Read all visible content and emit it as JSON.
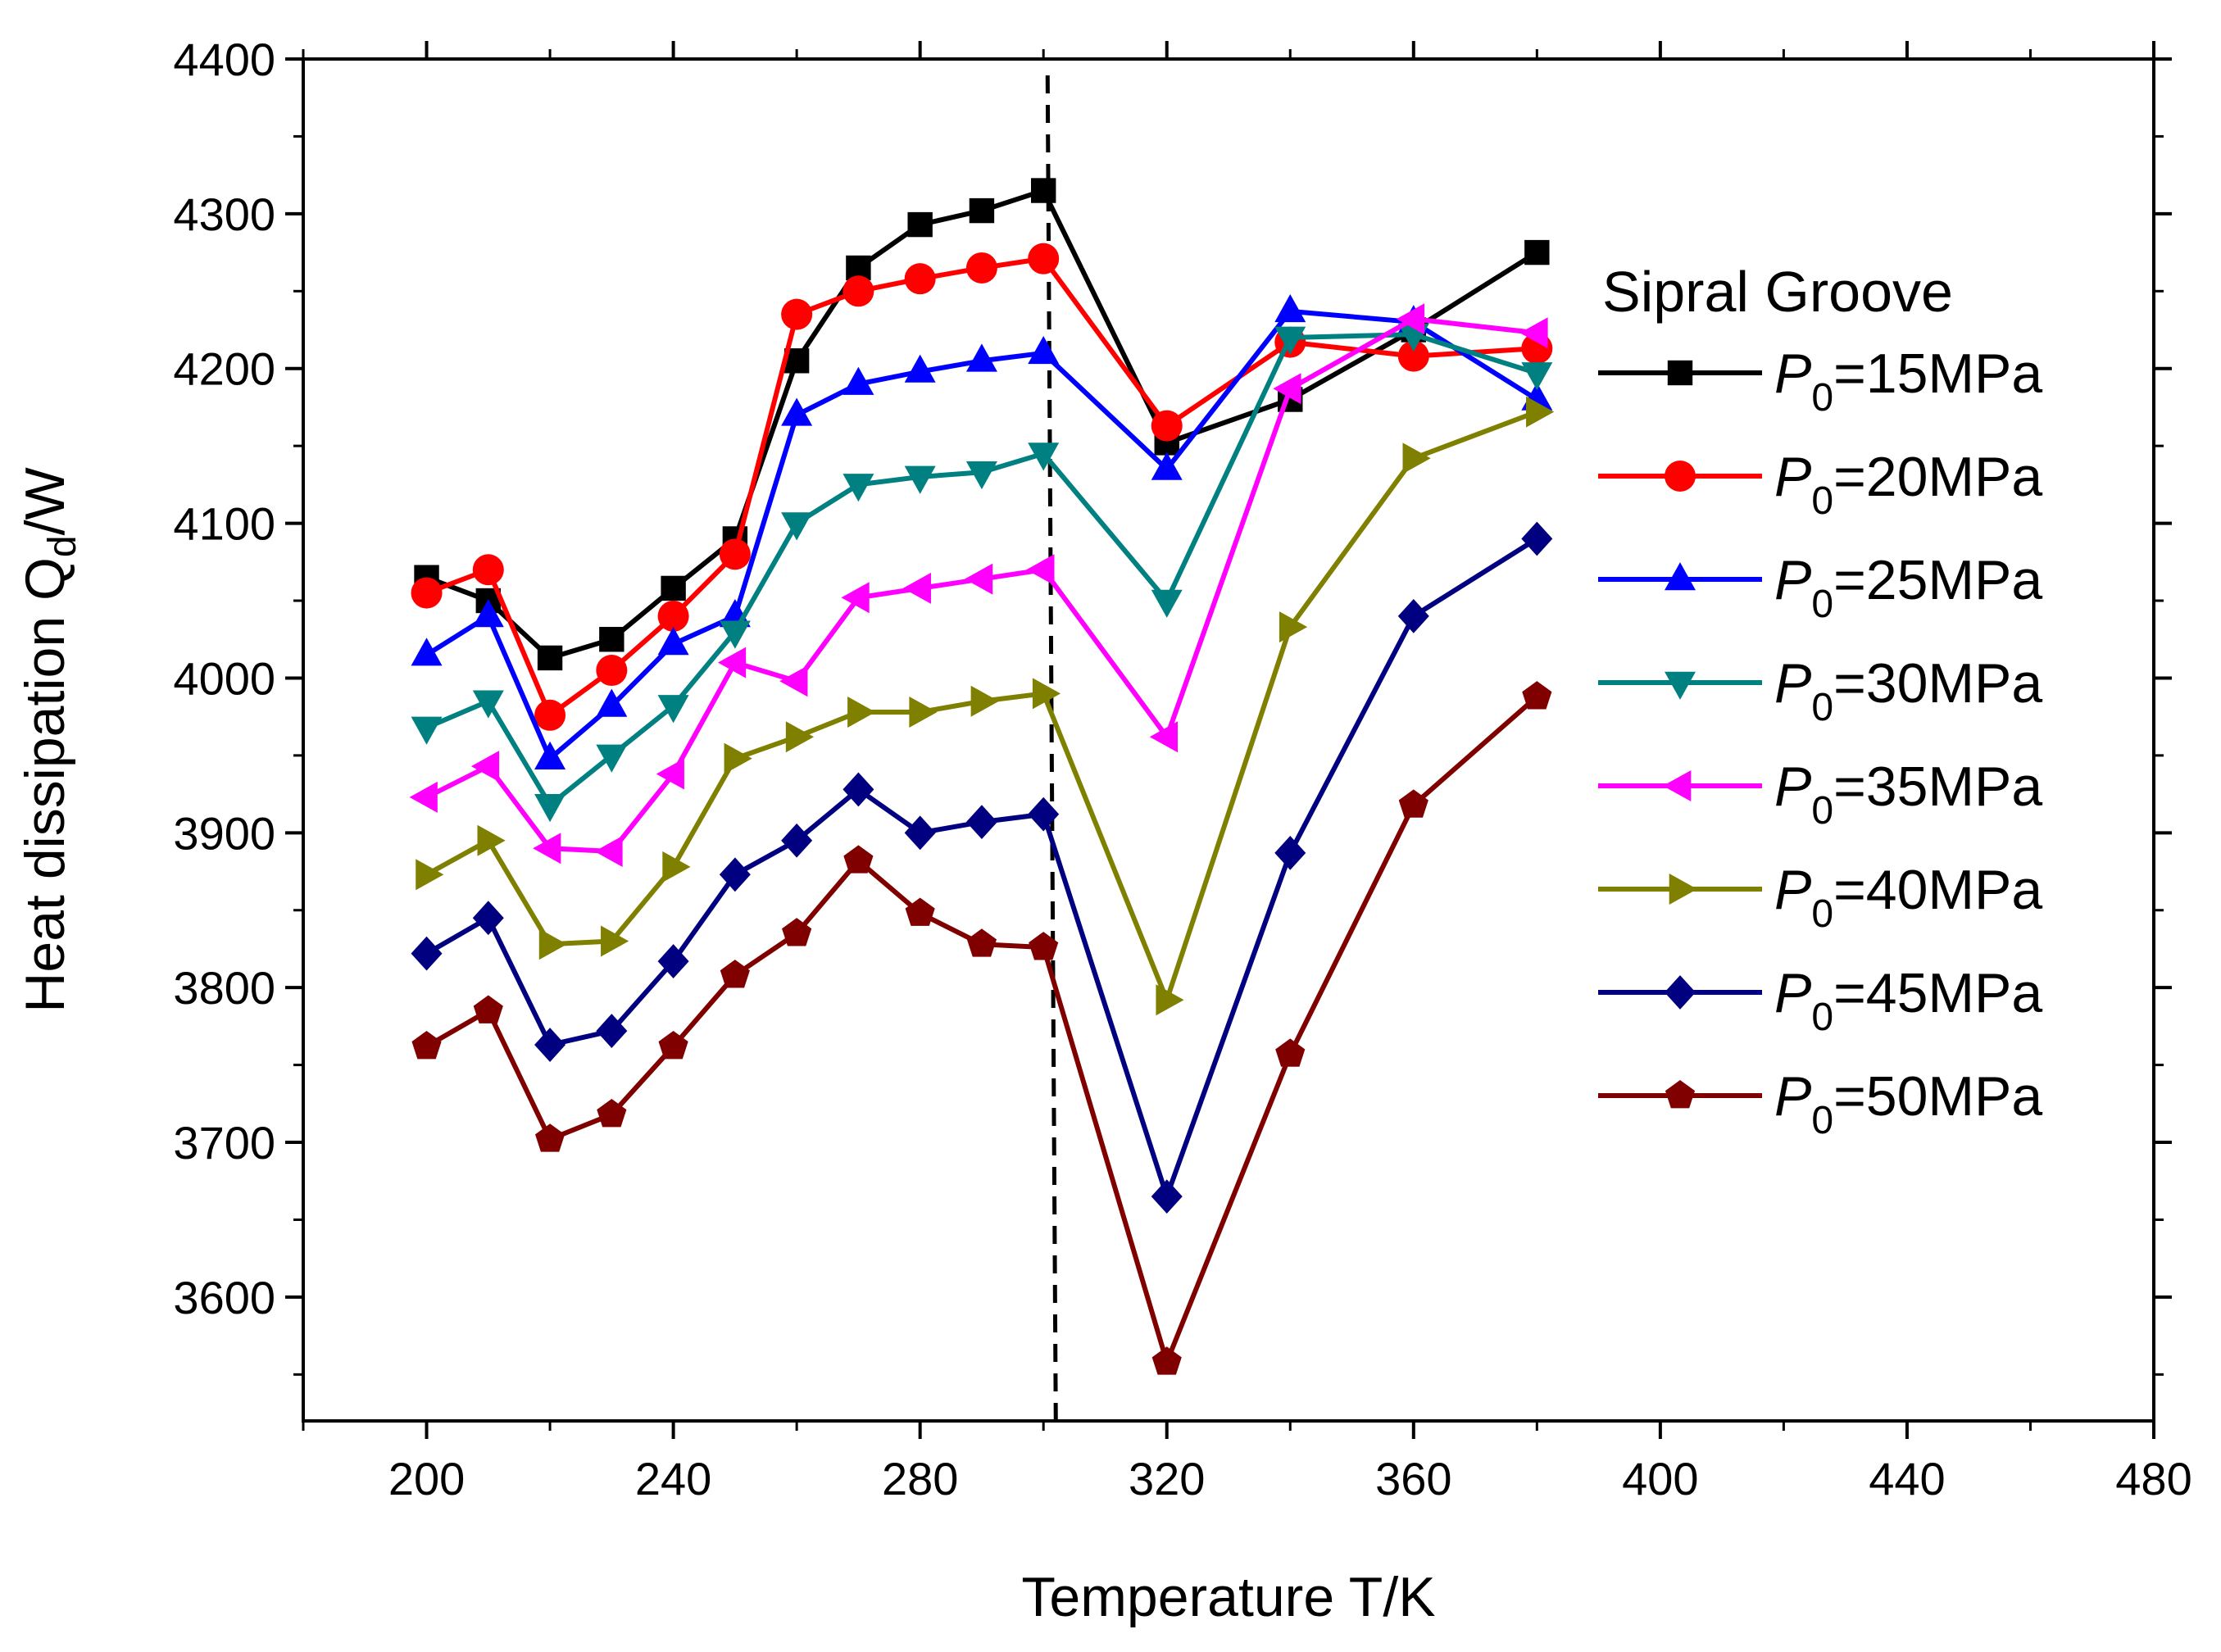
{
  "chart_data": {
    "type": "line",
    "title": "",
    "xlabel": "Temperature T/K",
    "ylabel_main": "Heat dissipation Q",
    "ylabel_sub": "d",
    "ylabel_unit": "/W",
    "xlim": [
      180,
      480
    ],
    "ylim": [
      3520,
      4400
    ],
    "xticks": [
      200,
      240,
      280,
      320,
      360,
      400,
      440,
      480
    ],
    "yticks": [
      3600,
      3700,
      3800,
      3900,
      4000,
      4100,
      4200,
      4300,
      4400
    ],
    "x": [
      200,
      210,
      220,
      230,
      240,
      250,
      260,
      270,
      280,
      290,
      300,
      320,
      340,
      360,
      380
    ],
    "reference_line_x": 302,
    "legend_title": "Sipral Groove",
    "legend_position": "right",
    "series": [
      {
        "name": "15MPa",
        "label_prefix": "P",
        "label_sub": "0",
        "label_suffix": "=15MPa",
        "color": "#000000",
        "marker": "square",
        "values": [
          4065,
          4050,
          4013,
          4025,
          4058,
          4090,
          4205,
          4265,
          4293,
          4302,
          4315,
          4152,
          4180,
          4225,
          4275
        ]
      },
      {
        "name": "20MPa",
        "label_prefix": "P",
        "label_sub": "0",
        "label_suffix": "=20MPa",
        "color": "#ff0000",
        "marker": "circle",
        "values": [
          4055,
          4070,
          3976,
          4005,
          4040,
          4080,
          4235,
          4250,
          4258,
          4265,
          4271,
          4163,
          4217,
          4208,
          4213
        ]
      },
      {
        "name": "25MPa",
        "label_prefix": "P",
        "label_sub": "0",
        "label_suffix": "=25MPa",
        "color": "#0000ff",
        "marker": "triangle-up",
        "values": [
          4015,
          4040,
          3948,
          3982,
          4022,
          4040,
          4170,
          4190,
          4198,
          4205,
          4210,
          4135,
          4237,
          4230,
          4180
        ]
      },
      {
        "name": "30MPa",
        "label_prefix": "P",
        "label_sub": "0",
        "label_suffix": "=30MPa",
        "color": "#008080",
        "marker": "triangle-down",
        "values": [
          3968,
          3985,
          3918,
          3950,
          3982,
          4030,
          4100,
          4125,
          4130,
          4133,
          4145,
          4050,
          4220,
          4222,
          4197
        ]
      },
      {
        "name": "35MPa",
        "label_prefix": "P",
        "label_sub": "0",
        "label_suffix": "=35MPa",
        "color": "#ff00ff",
        "marker": "triangle-left",
        "values": [
          3923,
          3943,
          3890,
          3888,
          3938,
          4010,
          3998,
          4052,
          4058,
          4064,
          4070,
          3962,
          4187,
          4232,
          4223
        ]
      },
      {
        "name": "40MPa",
        "label_prefix": "P",
        "label_sub": "0",
        "label_suffix": "=40MPa",
        "color": "#808000",
        "marker": "triangle-right",
        "values": [
          3873,
          3895,
          3828,
          3830,
          3878,
          3948,
          3962,
          3978,
          3978,
          3985,
          3990,
          3792,
          4033,
          4142,
          4172
        ]
      },
      {
        "name": "45MPa",
        "label_prefix": "P",
        "label_sub": "0",
        "label_suffix": "=45MPa",
        "color": "#000080",
        "marker": "diamond",
        "values": [
          3822,
          3845,
          3763,
          3772,
          3817,
          3873,
          3895,
          3928,
          3900,
          3907,
          3912,
          3665,
          3887,
          4040,
          4090
        ]
      },
      {
        "name": "50MPa",
        "label_prefix": "P",
        "label_sub": "0",
        "label_suffix": "=50MPa",
        "color": "#800000",
        "marker": "pentagon",
        "values": [
          3762,
          3785,
          3702,
          3718,
          3762,
          3808,
          3835,
          3882,
          3848,
          3828,
          3826,
          3558,
          3757,
          3918,
          3988
        ]
      }
    ]
  }
}
